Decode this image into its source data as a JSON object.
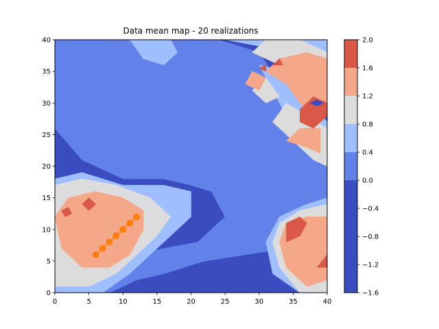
{
  "chart_data": {
    "type": "heatmap",
    "title": "Data mean map - 20 realizations",
    "xlabel": "",
    "ylabel": "",
    "xlim": [
      0,
      40
    ],
    "ylim": [
      0,
      40
    ],
    "x_ticks": [
      0,
      5,
      10,
      15,
      20,
      25,
      30,
      35,
      40
    ],
    "y_ticks": [
      0,
      5,
      10,
      15,
      20,
      25,
      30,
      35,
      40
    ],
    "grid": false,
    "colorbar": {
      "levels": [
        -1.6,
        -1.2,
        -0.8,
        -0.4,
        0.0,
        0.4,
        0.8,
        1.2,
        1.6,
        2.0
      ],
      "tick_labels": [
        "−1.6",
        "−1.2",
        "−0.8",
        "−0.4",
        "0.0",
        "0.4",
        "0.8",
        "1.2",
        "1.6",
        "2.0"
      ],
      "bands": [
        {
          "from": -1.6,
          "to": 0.0,
          "color": "#3b4cc0"
        },
        {
          "from": 0.0,
          "to": 0.4,
          "color": "#6282ea"
        },
        {
          "from": 0.4,
          "to": 0.8,
          "color": "#9ebeff"
        },
        {
          "from": 0.8,
          "to": 1.2,
          "color": "#dddcdc"
        },
        {
          "from": 1.2,
          "to": 1.6,
          "color": "#f5a889"
        },
        {
          "from": 1.6,
          "to": 2.0,
          "color": "#d95847"
        }
      ]
    },
    "series": [
      {
        "type": "line",
        "color": "#ff7f0e",
        "x": [
          6,
          7,
          8,
          9,
          10,
          11,
          12
        ],
        "y": [
          6,
          7,
          8,
          9,
          10,
          11,
          12
        ]
      }
    ]
  },
  "regions": [
    {
      "level": 0.0,
      "points": [
        [
          0,
          0
        ],
        [
          8,
          0
        ],
        [
          12,
          2
        ],
        [
          16,
          3
        ],
        [
          22,
          5
        ],
        [
          28,
          6
        ],
        [
          34,
          7
        ],
        [
          38,
          4
        ],
        [
          40,
          6
        ],
        [
          40,
          24
        ],
        [
          37,
          28
        ],
        [
          33,
          33
        ],
        [
          30,
          38
        ],
        [
          24,
          40
        ],
        [
          0,
          40
        ],
        [
          0,
          26
        ],
        [
          4,
          21
        ],
        [
          10,
          18
        ],
        [
          16,
          18
        ],
        [
          20,
          17
        ],
        [
          23,
          16
        ],
        [
          25,
          12
        ],
        [
          21,
          8
        ],
        [
          16,
          7
        ],
        [
          12,
          6
        ],
        [
          6,
          4
        ],
        [
          0,
          3
        ]
      ]
    },
    {
      "level": 0.4,
      "points": [
        [
          0,
          0
        ],
        [
          7,
          0
        ],
        [
          11,
          3
        ],
        [
          14,
          6
        ],
        [
          17,
          9
        ],
        [
          20,
          12
        ],
        [
          20,
          16
        ],
        [
          16,
          17
        ],
        [
          10,
          17
        ],
        [
          4,
          19
        ],
        [
          0,
          18
        ],
        [
          0,
          3
        ]
      ]
    },
    {
      "level": 0.4,
      "points": [
        [
          25,
          40
        ],
        [
          30,
          39
        ],
        [
          34,
          36
        ],
        [
          38,
          33
        ],
        [
          40,
          29
        ],
        [
          40,
          40
        ]
      ]
    },
    {
      "level": 0.4,
      "points": [
        [
          30,
          36
        ],
        [
          33,
          30
        ],
        [
          36,
          24
        ],
        [
          40,
          20
        ],
        [
          40,
          27
        ],
        [
          37,
          31
        ],
        [
          34,
          35
        ]
      ]
    },
    {
      "level": 0.4,
      "points": [
        [
          33,
          12
        ],
        [
          37,
          14
        ],
        [
          40,
          15
        ],
        [
          40,
          0
        ],
        [
          36,
          0
        ],
        [
          32,
          3
        ],
        [
          31,
          8
        ]
      ]
    },
    {
      "level": 0.4,
      "points": [
        [
          11,
          40
        ],
        [
          13,
          37
        ],
        [
          16,
          36
        ],
        [
          18,
          38
        ],
        [
          17,
          40
        ]
      ]
    },
    {
      "level": 0.8,
      "points": [
        [
          0,
          1
        ],
        [
          5,
          1
        ],
        [
          9,
          3
        ],
        [
          12,
          6
        ],
        [
          15,
          9
        ],
        [
          17,
          12
        ],
        [
          14,
          15
        ],
        [
          9,
          17
        ],
        [
          4,
          18
        ],
        [
          0,
          17
        ]
      ]
    },
    {
      "level": 0.8,
      "points": [
        [
          29,
          38
        ],
        [
          33,
          36
        ],
        [
          36,
          33
        ],
        [
          38,
          31
        ],
        [
          40,
          29
        ],
        [
          40,
          38
        ],
        [
          36,
          40
        ],
        [
          31,
          40
        ]
      ]
    },
    {
      "level": 0.8,
      "points": [
        [
          32,
          27
        ],
        [
          35,
          24
        ],
        [
          38,
          21
        ],
        [
          40,
          20
        ],
        [
          40,
          26
        ],
        [
          37,
          28
        ],
        [
          34,
          30
        ]
      ]
    },
    {
      "level": 0.8,
      "points": [
        [
          33,
          11
        ],
        [
          36,
          13
        ],
        [
          40,
          14
        ],
        [
          40,
          0
        ],
        [
          36,
          0
        ],
        [
          33,
          4
        ],
        [
          32,
          8
        ]
      ]
    },
    {
      "level": 0.8,
      "points": [
        [
          29,
          32
        ],
        [
          31,
          30
        ],
        [
          33,
          31
        ],
        [
          31,
          34
        ]
      ]
    },
    {
      "level": 1.2,
      "points": [
        [
          1,
          7
        ],
        [
          4,
          4
        ],
        [
          8,
          4
        ],
        [
          11,
          6
        ],
        [
          13,
          10
        ],
        [
          13,
          13
        ],
        [
          10,
          15
        ],
        [
          6,
          16
        ],
        [
          2,
          15
        ],
        [
          0,
          12
        ]
      ]
    },
    {
      "level": 1.2,
      "points": [
        [
          31,
          35
        ],
        [
          34,
          33
        ],
        [
          36,
          30
        ],
        [
          38,
          28
        ],
        [
          40,
          29
        ],
        [
          40,
          37
        ],
        [
          37,
          38
        ],
        [
          33,
          37
        ]
      ]
    },
    {
      "level": 1.2,
      "points": [
        [
          34,
          24
        ],
        [
          37,
          23
        ],
        [
          39,
          22
        ],
        [
          39,
          26
        ],
        [
          36,
          26
        ]
      ]
    },
    {
      "level": 1.2,
      "points": [
        [
          34,
          11
        ],
        [
          37,
          12
        ],
        [
          40,
          12
        ],
        [
          40,
          2
        ],
        [
          37,
          1
        ],
        [
          34,
          4
        ],
        [
          33,
          8
        ]
      ]
    },
    {
      "level": 1.2,
      "points": [
        [
          28,
          33
        ],
        [
          30,
          32
        ],
        [
          31,
          34
        ],
        [
          29,
          35
        ]
      ]
    },
    {
      "level": 1.6,
      "points": [
        [
          36,
          29
        ],
        [
          38,
          31
        ],
        [
          40,
          30
        ],
        [
          40,
          28
        ],
        [
          38,
          26
        ],
        [
          36,
          27
        ]
      ]
    },
    {
      "level": 1.6,
      "points": [
        [
          34,
          8
        ],
        [
          36,
          9
        ],
        [
          37,
          11
        ],
        [
          36,
          12
        ],
        [
          34,
          11
        ]
      ]
    },
    {
      "level": 1.6,
      "points": [
        [
          4,
          14
        ],
        [
          5,
          15
        ],
        [
          6,
          14
        ],
        [
          5,
          13
        ]
      ]
    },
    {
      "level": 1.6,
      "points": [
        [
          1,
          13
        ],
        [
          2,
          13.5
        ],
        [
          2.5,
          12.5
        ],
        [
          1.5,
          12
        ]
      ]
    },
    {
      "level": 1.6,
      "points": [
        [
          38.5,
          4
        ],
        [
          40,
          6
        ],
        [
          40,
          4
        ]
      ]
    },
    {
      "level": 1.6,
      "points": [
        [
          30,
          35.5
        ],
        [
          31,
          36
        ],
        [
          31,
          35
        ]
      ]
    },
    {
      "level": 1.6,
      "points": [
        [
          32,
          36
        ],
        [
          33,
          37
        ],
        [
          33.5,
          36
        ]
      ]
    },
    {
      "level": 2.0,
      "points": [
        [
          37.5,
          30
        ],
        [
          38.5,
          30.5
        ],
        [
          39.5,
          30
        ],
        [
          38.5,
          29.5
        ]
      ]
    }
  ]
}
